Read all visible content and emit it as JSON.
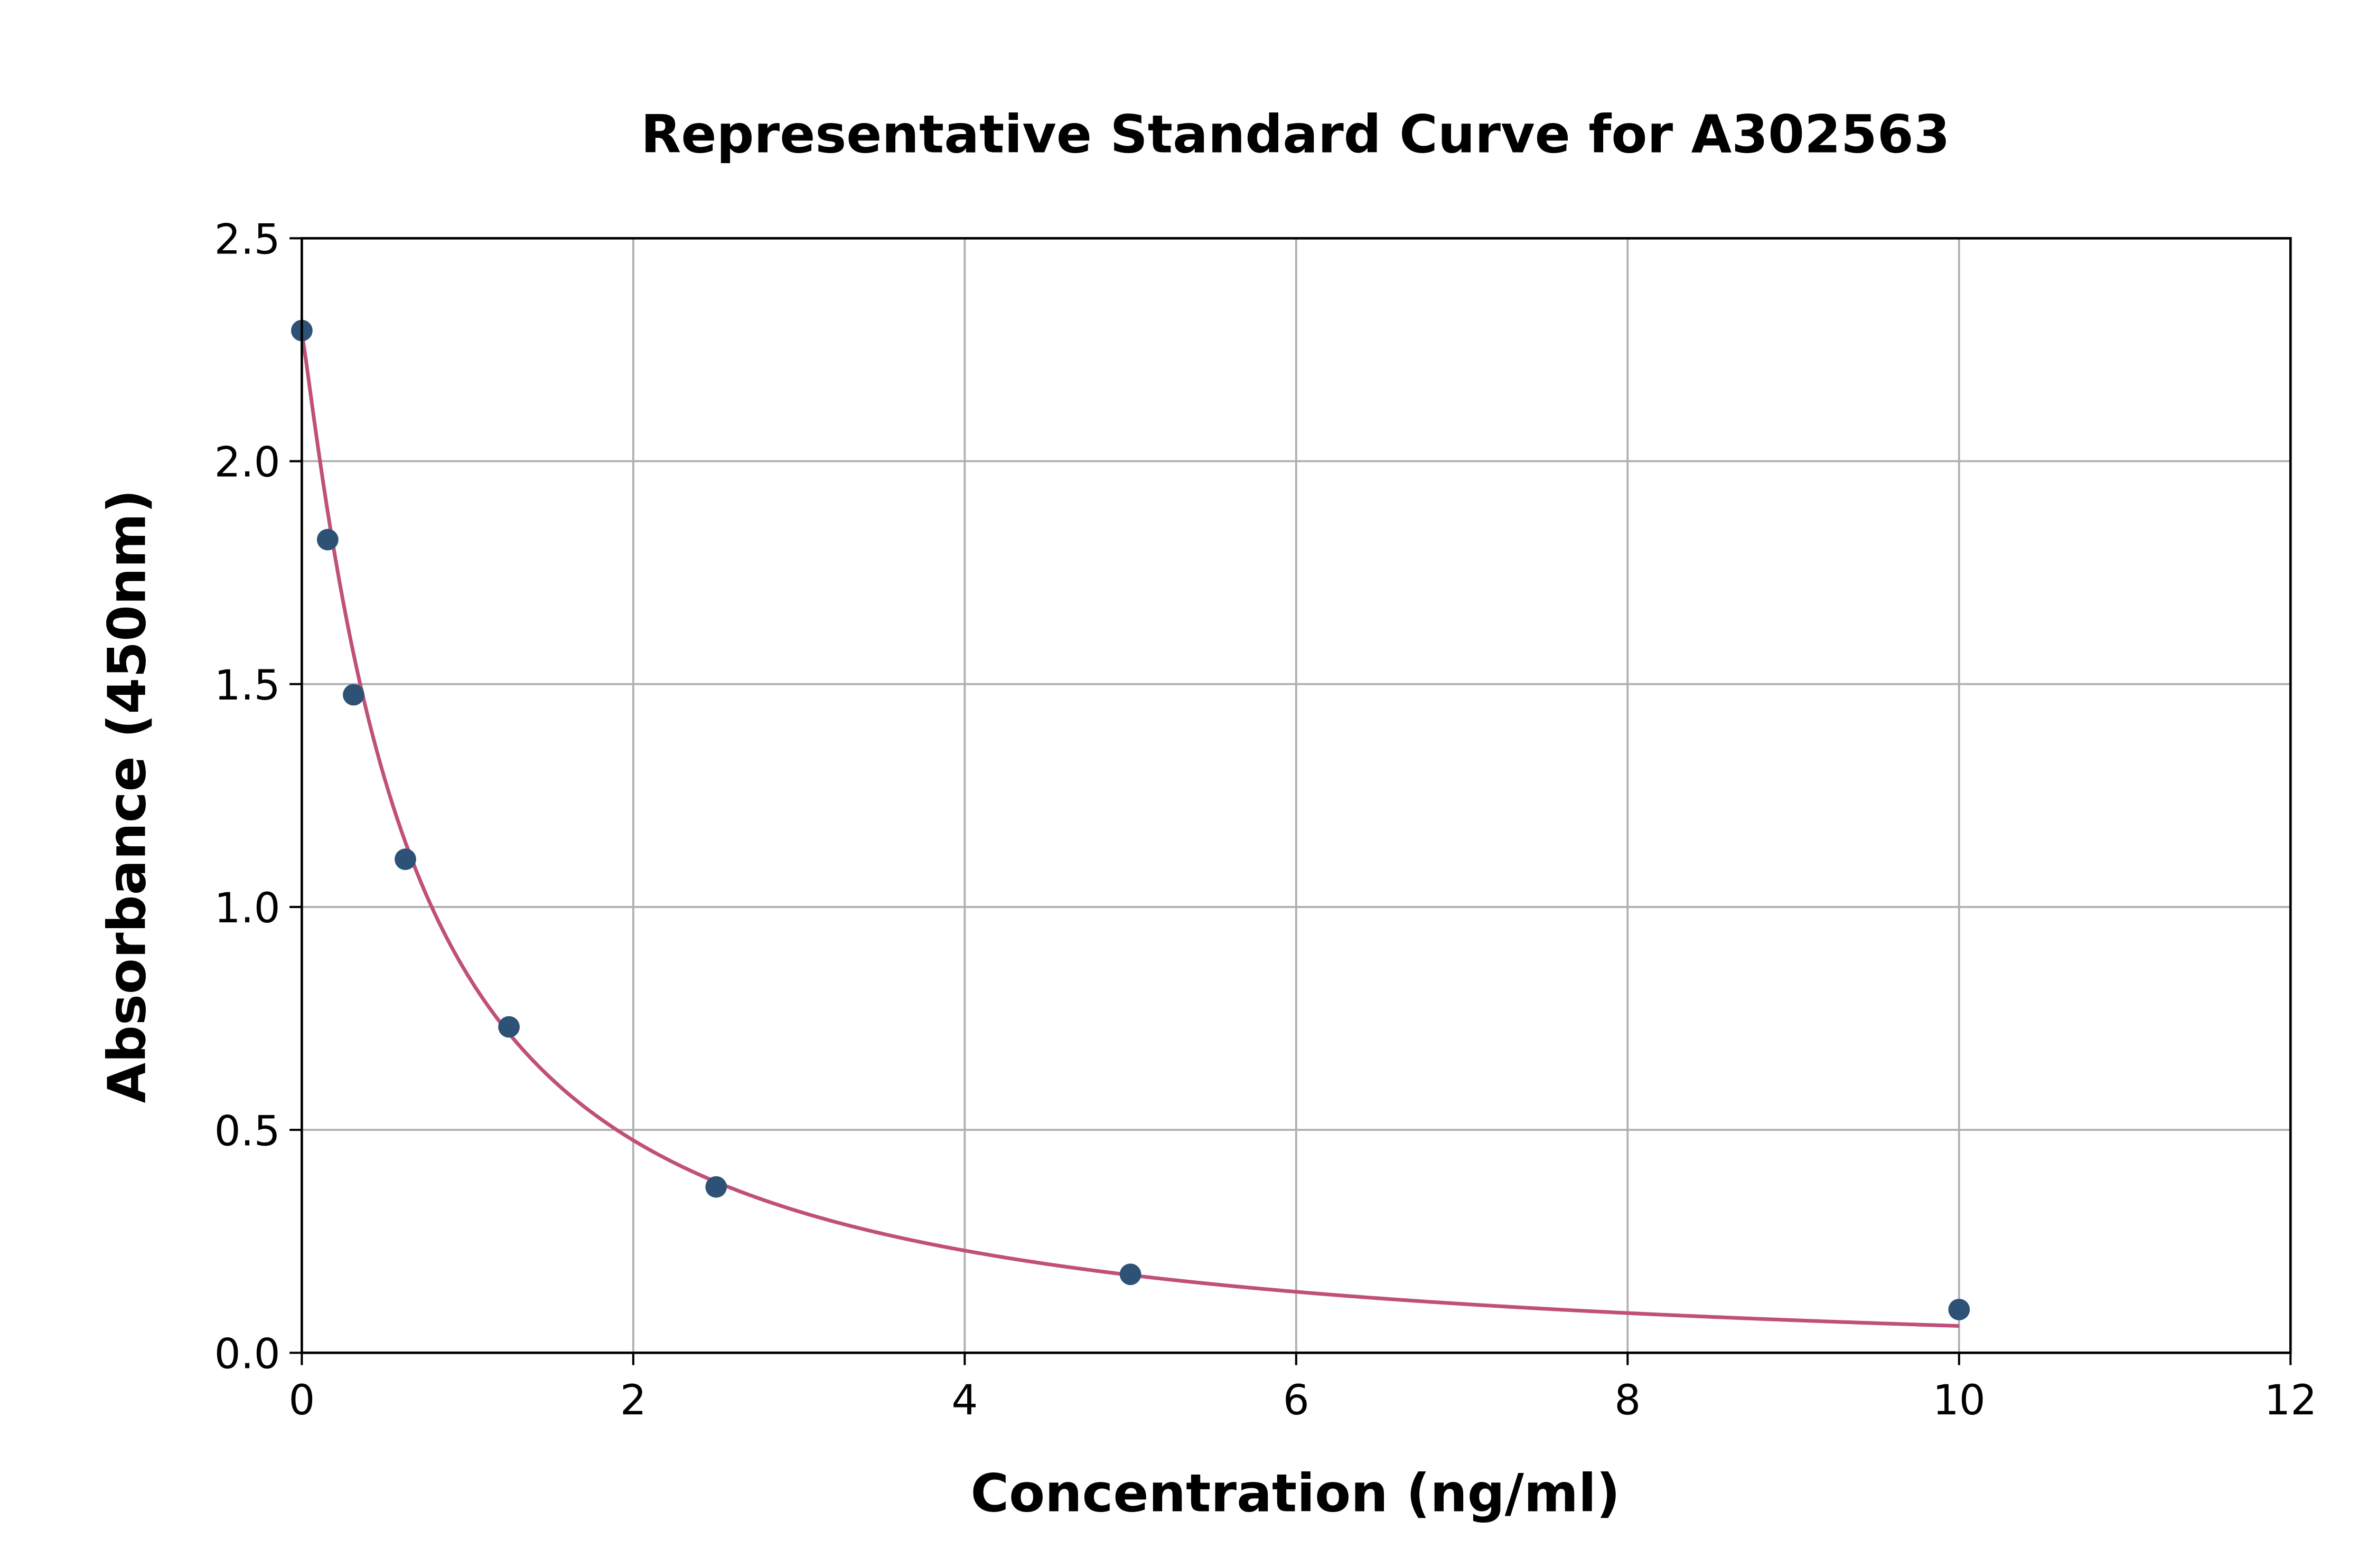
{
  "chart_data": {
    "type": "scatter",
    "title": "Representative Standard Curve for A302563",
    "xlabel": "Concentration (ng/ml)",
    "ylabel": "Absorbance (450nm)",
    "xlim": [
      0,
      12
    ],
    "ylim": [
      0,
      2.5
    ],
    "xticks": [
      "0",
      "2",
      "4",
      "6",
      "8",
      "10",
      "12"
    ],
    "yticks": [
      "0.0",
      "0.5",
      "1.0",
      "1.5",
      "2.0",
      "2.5"
    ],
    "grid": true,
    "legend": "none",
    "points": {
      "x": [
        0,
        0.156,
        0.3125,
        0.625,
        1.25,
        2.5,
        5,
        10
      ],
      "y": [
        2.293,
        1.824,
        1.476,
        1.107,
        0.731,
        0.372,
        0.176,
        0.097
      ]
    },
    "fit_curve": "four-parameter logistic fit",
    "colors": {
      "points": "#2d5276",
      "curve": "#c0507a",
      "grid": "#b0b0b0"
    }
  }
}
